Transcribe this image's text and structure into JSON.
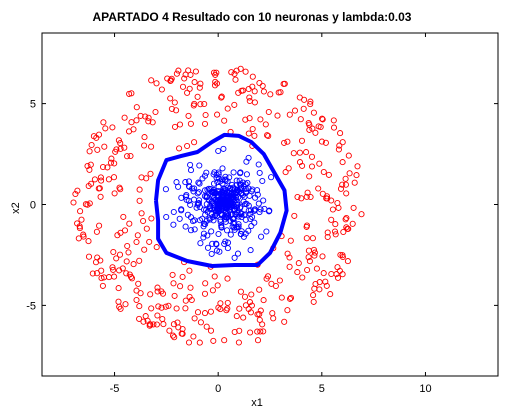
{
  "chart_data": {
    "type": "scatter",
    "title": "APARTADO 4 Resultado con 10 neuronas y lambda:0.03",
    "xlabel": "x1",
    "ylabel": "x2",
    "xlim": [
      -8.5,
      13.5
    ],
    "ylim": [
      -8.5,
      8.5
    ],
    "xticks": [
      -5,
      0,
      5,
      10
    ],
    "yticks": [
      -5,
      0,
      5
    ],
    "xtick_labels": [
      "-5",
      "0",
      "5",
      "10"
    ],
    "ytick_labels": [
      "-5",
      "0",
      "5"
    ],
    "grid": false,
    "legend": "none",
    "series": [
      {
        "class": "outer ring",
        "marker": "open-circle",
        "color": "#ff0000",
        "n_points": 450,
        "radius_range": [
          3.0,
          7.0
        ],
        "center": [
          0,
          0
        ]
      },
      {
        "class": "inner cluster",
        "marker": "open-circle",
        "color": "#0000ff",
        "n_points": 420,
        "radius_range": [
          0,
          2.9
        ],
        "center": [
          0.3,
          0.1
        ]
      }
    ],
    "decision_boundary": {
      "color": "#0000ff",
      "points": [
        [
          -3.0,
          0.2
        ],
        [
          -2.9,
          1.2
        ],
        [
          -2.5,
          2.2
        ],
        [
          -1.8,
          2.4
        ],
        [
          -1.0,
          2.6
        ],
        [
          -0.3,
          3.1
        ],
        [
          0.3,
          3.45
        ],
        [
          1.0,
          3.4
        ],
        [
          1.6,
          3.1
        ],
        [
          2.2,
          2.5
        ],
        [
          2.7,
          1.6
        ],
        [
          3.2,
          0.7
        ],
        [
          3.3,
          -0.3
        ],
        [
          3.0,
          -1.4
        ],
        [
          2.5,
          -2.4
        ],
        [
          1.9,
          -3.0
        ],
        [
          0.8,
          -3.0
        ],
        [
          -0.3,
          -3.05
        ],
        [
          -1.5,
          -2.8
        ],
        [
          -2.5,
          -2.4
        ],
        [
          -2.9,
          -1.7
        ],
        [
          -2.9,
          -0.8
        ],
        [
          -3.0,
          0.2
        ]
      ]
    }
  }
}
